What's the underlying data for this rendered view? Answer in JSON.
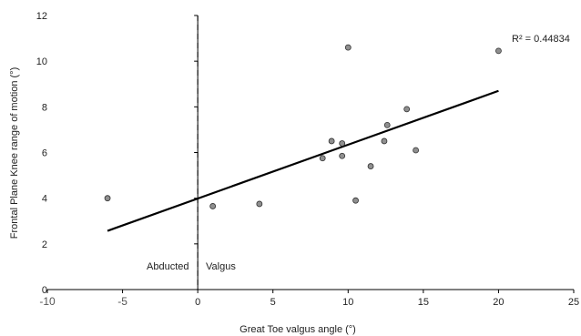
{
  "chart_data": {
    "type": "scatter",
    "xlabel": "Great Toe valgus angle (°)",
    "ylabel": "Frontal Plane Knee range of motion (°)",
    "xlim": [
      -10,
      25
    ],
    "ylim": [
      0,
      12
    ],
    "x_ticks": [
      "-10",
      "-5",
      "0",
      "5",
      "10",
      "15",
      "20",
      "25"
    ],
    "x_tick_values": [
      -10,
      -5,
      0,
      5,
      10,
      15,
      20,
      25
    ],
    "y_ticks": [
      "0",
      "2",
      "4",
      "6",
      "8",
      "10",
      "12"
    ],
    "y_tick_values": [
      0,
      2,
      4,
      6,
      8,
      10,
      12
    ],
    "points": [
      {
        "x": -6,
        "y": 4.0
      },
      {
        "x": 1.0,
        "y": 3.65
      },
      {
        "x": 4.1,
        "y": 3.75
      },
      {
        "x": 8.3,
        "y": 5.75
      },
      {
        "x": 8.9,
        "y": 6.5
      },
      {
        "x": 9.6,
        "y": 6.4
      },
      {
        "x": 9.6,
        "y": 5.85
      },
      {
        "x": 10.0,
        "y": 10.6
      },
      {
        "x": 10.5,
        "y": 3.9
      },
      {
        "x": 11.5,
        "y": 5.4
      },
      {
        "x": 12.4,
        "y": 6.5
      },
      {
        "x": 12.6,
        "y": 7.2
      },
      {
        "x": 13.9,
        "y": 7.9
      },
      {
        "x": 14.5,
        "y": 6.1
      },
      {
        "x": 20.0,
        "y": 10.45
      }
    ],
    "trendline": {
      "x1": -6,
      "y1": 2.57,
      "x2": 20,
      "y2": 8.7
    },
    "vertical_line_x": 0,
    "annotations": {
      "r_squared": "R² = 0.44834",
      "left_region": "Abducted",
      "right_region": "Valgus"
    },
    "grid": false,
    "legend": "none"
  }
}
